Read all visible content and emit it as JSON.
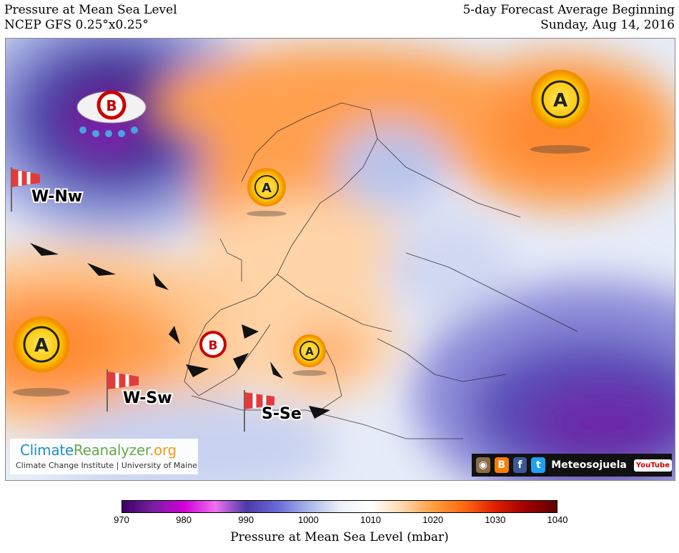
{
  "header": {
    "title_left_1": "Pressure at Mean Sea Level",
    "title_left_2": "NCEP GFS 0.25°x0.25°",
    "title_right_1": "5-day Forecast Average Beginning",
    "title_right_2": "Sunday, Aug 14, 2016"
  },
  "map": {
    "high_symbol": "A",
    "low_symbol": "B",
    "wind_labels": {
      "w_nw": "W-Nw",
      "w_sw": "W-Sw",
      "s_se": "S-Se"
    }
  },
  "branding": {
    "logo_part1": "Climate",
    "logo_part2": "Reanalyzer",
    "logo_part3": ".org",
    "logo_subtitle": "Climate Change Institute | University of Maine",
    "social_name": "Meteosojuela",
    "youtube": "YouTube"
  },
  "colorbar": {
    "ticks": [
      "970",
      "980",
      "990",
      "1000",
      "1010",
      "1020",
      "1030",
      "1040"
    ],
    "label": "Pressure at Mean Sea Level (mbar)",
    "colors": [
      "#3d0066",
      "#7a1fa2",
      "#d000d8",
      "#f070f0",
      "#4b3aa8",
      "#6a6ad8",
      "#a9b6e8",
      "#eaeff8",
      "#ffffff",
      "#ffd8b0",
      "#ffa040",
      "#ff6a10",
      "#e02000",
      "#a00000",
      "#600000"
    ]
  }
}
